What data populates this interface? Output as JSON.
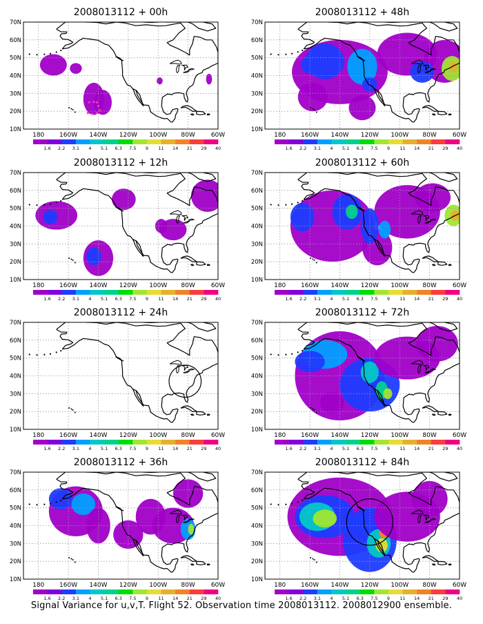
{
  "figure": {
    "footer_caption": "Signal Variance for u,v,T. Flight 52. Observation time 2008013112. 2008012900 ensemble."
  },
  "axes": {
    "lat_labels": [
      "70N",
      "60N",
      "50N",
      "40N",
      "30N",
      "20N",
      "10N"
    ],
    "lon_labels": [
      "180",
      "160W",
      "140W",
      "120W",
      "100W",
      "80W",
      "60W"
    ]
  },
  "colorbar": {
    "labels": [
      "1.6",
      "2.2",
      "3.1",
      "4",
      "5.1",
      "6.3",
      "7.5",
      "9",
      "11",
      "14",
      "21",
      "29",
      "40"
    ],
    "colors": [
      "#ffffff",
      "#a000c8",
      "#8200dc",
      "#1e3cff",
      "#00a0ff",
      "#00c8c8",
      "#00d28c",
      "#00dc00",
      "#a0e632",
      "#e6dc32",
      "#e6af2d",
      "#f08228",
      "#fa3c3c",
      "#f00082"
    ]
  },
  "panels": [
    {
      "title": "2008013112 + 00h",
      "lead": "00h"
    },
    {
      "title": "2008013112 + 48h",
      "lead": "48h"
    },
    {
      "title": "2008013112 + 12h",
      "lead": "12h"
    },
    {
      "title": "2008013112 + 60h",
      "lead": "60h"
    },
    {
      "title": "2008013112 + 24h",
      "lead": "24h"
    },
    {
      "title": "2008013112 + 72h",
      "lead": "72h"
    },
    {
      "title": "2008013112 + 36h",
      "lead": "36h"
    },
    {
      "title": "2008013112 + 84h",
      "lead": "84h"
    }
  ],
  "map_style": {
    "land_outline_color": "#000000",
    "grid_color": "#9a9a9a",
    "flight_track_color": "#ff33cc",
    "circle_color": "#000000"
  }
}
